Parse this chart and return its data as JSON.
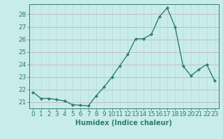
{
  "x": [
    0,
    1,
    2,
    3,
    4,
    5,
    6,
    7,
    8,
    9,
    10,
    11,
    12,
    13,
    14,
    15,
    16,
    17,
    18,
    19,
    20,
    21,
    22,
    23
  ],
  "y": [
    21.8,
    21.3,
    21.3,
    21.2,
    21.1,
    20.8,
    20.75,
    20.7,
    21.5,
    22.2,
    23.0,
    23.9,
    24.8,
    26.05,
    26.05,
    26.4,
    27.8,
    28.5,
    27.0,
    23.9,
    23.1,
    23.6,
    24.0,
    22.7
  ],
  "line_color": "#2e7d6e",
  "marker": "D",
  "marker_size": 2.2,
  "line_width": 1.0,
  "bg_color": "#c8ecea",
  "grid_color_h": "#c4a8a8",
  "grid_color_v": "#b8d8d4",
  "yticks": [
    21,
    22,
    23,
    24,
    25,
    26,
    27,
    28
  ],
  "ylim": [
    20.5,
    28.8
  ],
  "xlim": [
    -0.5,
    23.5
  ],
  "xlabel": "Humidex (Indice chaleur)",
  "xlabel_fontsize": 7,
  "tick_fontsize": 6.5
}
